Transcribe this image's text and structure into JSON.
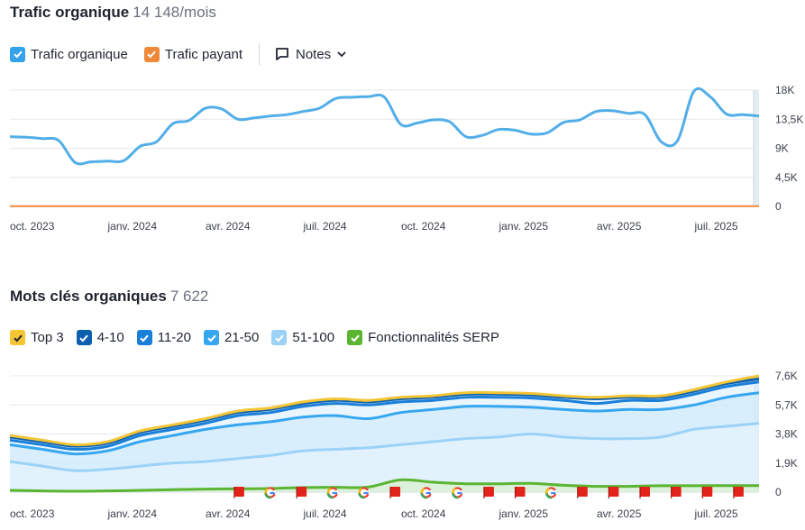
{
  "traffic": {
    "title": "Trafic organique",
    "value": "14 148",
    "unit": "/mois",
    "legend": [
      {
        "label": "Trafic organique",
        "color": "#36a2eb",
        "checked": true
      },
      {
        "label": "Trafic payant",
        "color": "#f0883a",
        "checked": true
      }
    ],
    "notes_label": "Notes"
  },
  "keywords": {
    "title": "Mots clés organiques",
    "value": "7 622",
    "legend": [
      {
        "label": "Top 3",
        "color": "#f4c534"
      },
      {
        "label": "4-10",
        "color": "#0b5fad"
      },
      {
        "label": "11-20",
        "color": "#1a7fd9"
      },
      {
        "label": "21-50",
        "color": "#35a6ef"
      },
      {
        "label": "51-100",
        "color": "#9cd2f7"
      },
      {
        "label": "Fonctionnalités SERP",
        "color": "#5bb531"
      }
    ]
  },
  "colors": {
    "organic": "#52aee8",
    "paid": "#f0883a",
    "top3": "#f4c534",
    "r4_10": "#0b5fad",
    "r11_20": "#1a7fd9",
    "r21_50": "#35a6ef",
    "r51_100": "#9cd2f7",
    "serp": "#5bb531",
    "grid": "#e6e8ee"
  },
  "chart_data": [
    {
      "type": "line",
      "x_ticks": [
        "oct. 2023",
        "janv. 2024",
        "avr. 2024",
        "juil. 2024",
        "oct. 2024",
        "janv. 2025",
        "avr. 2025",
        "juil. 2025"
      ],
      "y_ticks": [
        "0",
        "4,5K",
        "9K",
        "13,5K",
        "18K"
      ],
      "ylim": [
        0,
        18000
      ],
      "x": [
        0,
        0.5,
        1,
        1.5,
        2,
        2.5,
        3,
        3.5,
        4,
        4.5,
        5,
        5.5,
        6,
        6.5,
        7,
        7.5,
        8,
        8.5,
        9,
        9.5,
        10,
        10.5,
        11,
        11.5,
        12,
        12.5,
        13,
        13.5,
        14,
        14.5,
        15,
        15.5,
        16,
        16.5,
        17,
        17.5,
        18,
        18.5,
        19,
        19.5,
        20,
        20.5,
        21,
        21.5,
        22,
        22.5,
        23
      ],
      "series": [
        {
          "name": "Trafic organique",
          "values": [
            10800,
            10700,
            10500,
            10200,
            6800,
            6900,
            7000,
            7100,
            9300,
            10000,
            12800,
            13300,
            15200,
            15100,
            13500,
            13700,
            14000,
            14200,
            14700,
            15200,
            16700,
            16900,
            17000,
            16900,
            12700,
            12900,
            13400,
            13100,
            10800,
            11000,
            11900,
            11800,
            11200,
            11400,
            13000,
            13400,
            14700,
            14800,
            14400,
            14200,
            10000,
            10200,
            17800,
            17000,
            14300,
            14200,
            14000
          ]
        },
        {
          "name": "Trafic payant",
          "values": [
            30,
            30,
            30,
            30,
            30,
            30,
            30,
            30,
            30,
            30,
            30,
            30,
            30,
            30,
            30,
            30,
            30,
            30,
            30,
            30,
            30,
            30,
            30,
            30,
            30,
            30,
            30,
            30,
            30,
            30,
            30,
            30,
            30,
            30,
            30,
            30,
            30,
            30,
            30,
            30,
            30,
            30,
            30,
            30,
            30,
            30,
            30
          ]
        }
      ]
    },
    {
      "type": "area",
      "x_ticks": [
        "oct. 2023",
        "janv. 2024",
        "avr. 2024",
        "juil. 2024",
        "oct. 2024",
        "janv. 2025",
        "avr. 2025",
        "juil. 2025"
      ],
      "y_ticks": [
        "0",
        "1,9K",
        "3,8K",
        "5,7K",
        "7,6K"
      ],
      "ylim": [
        0,
        7600
      ],
      "x": [
        0,
        1,
        2,
        3,
        4,
        5,
        6,
        7,
        8,
        9,
        10,
        11,
        12,
        13,
        14,
        15,
        16,
        17,
        18,
        19,
        20,
        21,
        22,
        23
      ],
      "series": [
        {
          "name": "Top 3",
          "values": [
            3700,
            3400,
            3100,
            3300,
            4000,
            4400,
            4800,
            5300,
            5500,
            5900,
            6100,
            6000,
            6200,
            6300,
            6500,
            6500,
            6450,
            6300,
            6200,
            6300,
            6300,
            6700,
            7200,
            7600
          ]
        },
        {
          "name": "4-10",
          "values": [
            3600,
            3300,
            3000,
            3200,
            3900,
            4300,
            4700,
            5200,
            5400,
            5800,
            6000,
            5900,
            6100,
            6200,
            6400,
            6400,
            6350,
            6200,
            6100,
            6200,
            6200,
            6600,
            7100,
            7400
          ]
        },
        {
          "name": "11-20",
          "values": [
            3400,
            3100,
            2800,
            3000,
            3700,
            4100,
            4500,
            5000,
            5200,
            5600,
            5800,
            5700,
            5900,
            6000,
            6200,
            6200,
            6150,
            6000,
            5800,
            6000,
            6000,
            6400,
            6900,
            7200
          ]
        },
        {
          "name": "21-50",
          "values": [
            3100,
            2800,
            2500,
            2700,
            3300,
            3700,
            4100,
            4400,
            4600,
            4900,
            5000,
            4800,
            5200,
            5400,
            5600,
            5600,
            5550,
            5400,
            5300,
            5400,
            5400,
            5700,
            6200,
            6500
          ]
        },
        {
          "name": "51-100",
          "values": [
            2000,
            1700,
            1400,
            1500,
            1700,
            1900,
            2000,
            2200,
            2400,
            2700,
            2800,
            2900,
            3100,
            3300,
            3500,
            3600,
            3800,
            3600,
            3500,
            3500,
            3600,
            4100,
            4300,
            4500
          ]
        },
        {
          "name": "Fonctionnalités SERP",
          "values": [
            120,
            80,
            60,
            80,
            120,
            160,
            200,
            220,
            240,
            300,
            320,
            330,
            800,
            650,
            550,
            550,
            570,
            450,
            380,
            380,
            420,
            420,
            430,
            430
          ]
        }
      ],
      "markers": [
        {
          "type": "flag",
          "x": 11.0
        },
        {
          "type": "google",
          "x": 12.5
        },
        {
          "type": "flag",
          "x": 14.0
        },
        {
          "type": "google",
          "x": 15.5
        },
        {
          "type": "google",
          "x": 17.0
        },
        {
          "type": "flag",
          "x": 18.5
        },
        {
          "type": "google",
          "x": 20.0
        },
        {
          "type": "google",
          "x": 21.5
        },
        {
          "type": "flag",
          "x": 23.0
        },
        {
          "type": "flag",
          "x": 24.5
        },
        {
          "type": "google",
          "x": 26.0
        },
        {
          "type": "flag",
          "x": 27.5
        },
        {
          "type": "flag",
          "x": 29.0
        },
        {
          "type": "flag",
          "x": 30.5
        },
        {
          "type": "flag",
          "x": 32.0
        },
        {
          "type": "flag",
          "x": 33.5
        },
        {
          "type": "flag",
          "x": 35.0
        }
      ]
    }
  ]
}
